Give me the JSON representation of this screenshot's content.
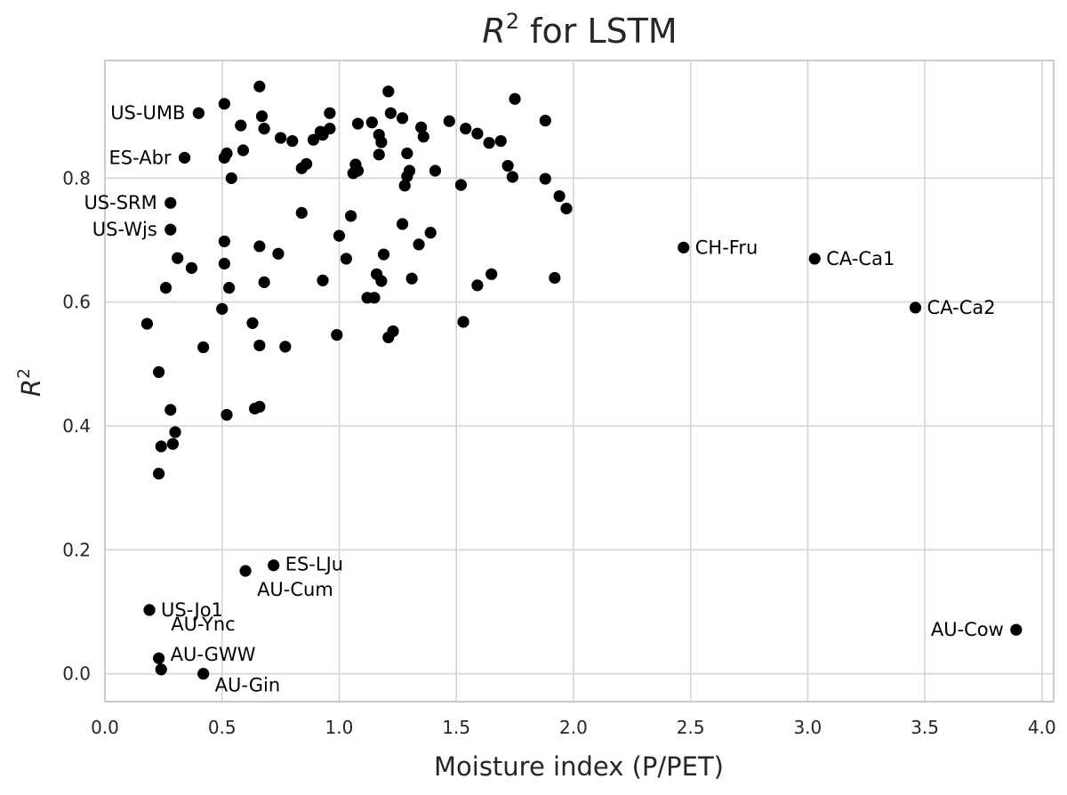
{
  "chart_data": {
    "type": "scatter",
    "title_main": "R",
    "title_sup": "2",
    "title_rest": " for LSTM",
    "xlabel": "Moisture index (P/PET)",
    "ylabel_main": "R",
    "ylabel_sup": "2",
    "xlim": [
      0.0,
      4.05
    ],
    "ylim": [
      -0.045,
      0.99
    ],
    "xticks": [
      "0.0",
      "0.5",
      "1.0",
      "1.5",
      "2.0",
      "2.5",
      "3.0",
      "3.5",
      "4.0"
    ],
    "yticks": [
      "0.0",
      "0.2",
      "0.4",
      "0.6",
      "0.8"
    ],
    "grid": true,
    "color": "#000000",
    "points": [
      {
        "x": 0.4,
        "y": 0.905
      },
      {
        "x": 0.51,
        "y": 0.92
      },
      {
        "x": 0.66,
        "y": 0.948
      },
      {
        "x": 0.67,
        "y": 0.9
      },
      {
        "x": 0.58,
        "y": 0.885
      },
      {
        "x": 0.68,
        "y": 0.88
      },
      {
        "x": 0.75,
        "y": 0.865
      },
      {
        "x": 0.8,
        "y": 0.86
      },
      {
        "x": 0.89,
        "y": 0.862
      },
      {
        "x": 0.92,
        "y": 0.875
      },
      {
        "x": 0.93,
        "y": 0.87
      },
      {
        "x": 0.96,
        "y": 0.905
      },
      {
        "x": 0.96,
        "y": 0.88
      },
      {
        "x": 1.08,
        "y": 0.888
      },
      {
        "x": 1.14,
        "y": 0.89
      },
      {
        "x": 1.17,
        "y": 0.87
      },
      {
        "x": 1.18,
        "y": 0.858
      },
      {
        "x": 1.21,
        "y": 0.94
      },
      {
        "x": 1.22,
        "y": 0.905
      },
      {
        "x": 1.27,
        "y": 0.897
      },
      {
        "x": 1.35,
        "y": 0.882
      },
      {
        "x": 1.36,
        "y": 0.867
      },
      {
        "x": 1.47,
        "y": 0.892
      },
      {
        "x": 1.54,
        "y": 0.88
      },
      {
        "x": 1.59,
        "y": 0.872
      },
      {
        "x": 1.64,
        "y": 0.857
      },
      {
        "x": 1.69,
        "y": 0.86
      },
      {
        "x": 1.75,
        "y": 0.928
      },
      {
        "x": 1.88,
        "y": 0.893
      },
      {
        "x": 0.34,
        "y": 0.833
      },
      {
        "x": 0.51,
        "y": 0.833
      },
      {
        "x": 0.52,
        "y": 0.84
      },
      {
        "x": 0.59,
        "y": 0.845
      },
      {
        "x": 0.54,
        "y": 0.8
      },
      {
        "x": 0.84,
        "y": 0.816
      },
      {
        "x": 0.86,
        "y": 0.823
      },
      {
        "x": 1.06,
        "y": 0.808
      },
      {
        "x": 1.07,
        "y": 0.822
      },
      {
        "x": 1.08,
        "y": 0.812
      },
      {
        "x": 1.17,
        "y": 0.838
      },
      {
        "x": 1.29,
        "y": 0.84
      },
      {
        "x": 1.29,
        "y": 0.803
      },
      {
        "x": 1.3,
        "y": 0.812
      },
      {
        "x": 1.28,
        "y": 0.788
      },
      {
        "x": 1.41,
        "y": 0.812
      },
      {
        "x": 1.52,
        "y": 0.789
      },
      {
        "x": 1.72,
        "y": 0.82
      },
      {
        "x": 1.74,
        "y": 0.802
      },
      {
        "x": 1.88,
        "y": 0.799
      },
      {
        "x": 1.94,
        "y": 0.771
      },
      {
        "x": 1.97,
        "y": 0.751
      },
      {
        "x": 0.28,
        "y": 0.76
      },
      {
        "x": 0.28,
        "y": 0.717
      },
      {
        "x": 0.84,
        "y": 0.744
      },
      {
        "x": 1.05,
        "y": 0.739
      },
      {
        "x": 1.27,
        "y": 0.726
      },
      {
        "x": 1.39,
        "y": 0.712
      },
      {
        "x": 1.0,
        "y": 0.707
      },
      {
        "x": 0.51,
        "y": 0.698
      },
      {
        "x": 0.66,
        "y": 0.69
      },
      {
        "x": 1.34,
        "y": 0.693
      },
      {
        "x": 0.31,
        "y": 0.671
      },
      {
        "x": 0.74,
        "y": 0.678
      },
      {
        "x": 1.19,
        "y": 0.677
      },
      {
        "x": 0.51,
        "y": 0.662
      },
      {
        "x": 1.03,
        "y": 0.67
      },
      {
        "x": 0.37,
        "y": 0.655
      },
      {
        "x": 1.16,
        "y": 0.645
      },
      {
        "x": 1.18,
        "y": 0.634
      },
      {
        "x": 0.93,
        "y": 0.635
      },
      {
        "x": 1.31,
        "y": 0.638
      },
      {
        "x": 0.68,
        "y": 0.632
      },
      {
        "x": 0.26,
        "y": 0.623
      },
      {
        "x": 0.53,
        "y": 0.623
      },
      {
        "x": 1.59,
        "y": 0.627
      },
      {
        "x": 1.65,
        "y": 0.645
      },
      {
        "x": 1.92,
        "y": 0.639
      },
      {
        "x": 1.12,
        "y": 0.607
      },
      {
        "x": 1.15,
        "y": 0.607
      },
      {
        "x": 0.5,
        "y": 0.589
      },
      {
        "x": 0.18,
        "y": 0.565
      },
      {
        "x": 0.63,
        "y": 0.566
      },
      {
        "x": 1.53,
        "y": 0.568
      },
      {
        "x": 0.99,
        "y": 0.547
      },
      {
        "x": 1.21,
        "y": 0.543
      },
      {
        "x": 1.23,
        "y": 0.553
      },
      {
        "x": 0.42,
        "y": 0.527
      },
      {
        "x": 0.66,
        "y": 0.53
      },
      {
        "x": 0.77,
        "y": 0.528
      },
      {
        "x": 0.23,
        "y": 0.487
      },
      {
        "x": 0.28,
        "y": 0.426
      },
      {
        "x": 0.52,
        "y": 0.418
      },
      {
        "x": 0.64,
        "y": 0.428
      },
      {
        "x": 0.66,
        "y": 0.431
      },
      {
        "x": 0.3,
        "y": 0.39
      },
      {
        "x": 0.24,
        "y": 0.367
      },
      {
        "x": 0.29,
        "y": 0.371
      },
      {
        "x": 0.23,
        "y": 0.323
      },
      {
        "x": 0.6,
        "y": 0.166
      },
      {
        "x": 0.72,
        "y": 0.175
      },
      {
        "x": 0.19,
        "y": 0.103
      },
      {
        "x": 0.23,
        "y": 0.025
      },
      {
        "x": 0.24,
        "y": 0.007
      },
      {
        "x": 0.42,
        "y": 0.0
      },
      {
        "x": 2.47,
        "y": 0.688
      },
      {
        "x": 3.03,
        "y": 0.67
      },
      {
        "x": 3.46,
        "y": 0.591
      },
      {
        "x": 3.89,
        "y": 0.071
      }
    ],
    "annotations": [
      {
        "text": "US-UMB",
        "x": 0.4,
        "y": 0.905
      },
      {
        "text": "ES-Abr",
        "x": 0.34,
        "y": 0.833
      },
      {
        "text": "US-SRM",
        "x": 0.28,
        "y": 0.76
      },
      {
        "text": "US-Wjs",
        "x": 0.28,
        "y": 0.717
      },
      {
        "text": "CH-Fru",
        "x": 2.47,
        "y": 0.688
      },
      {
        "text": "CA-Ca1",
        "x": 3.03,
        "y": 0.67
      },
      {
        "text": "CA-Ca2",
        "x": 3.46,
        "y": 0.591
      },
      {
        "text": "ES-LJu",
        "x": 0.72,
        "y": 0.175
      },
      {
        "text": "AU-Cum",
        "x": 0.6,
        "y": 0.166
      },
      {
        "text": "US-Jo1",
        "x": 0.19,
        "y": 0.103
      },
      {
        "text": "AU-Ync",
        "x": 0.24,
        "y": 0.007
      },
      {
        "text": "AU-GWW",
        "x": 0.23,
        "y": 0.025
      },
      {
        "text": "AU-Gin",
        "x": 0.42,
        "y": 0.0
      },
      {
        "text": "AU-Cow",
        "x": 3.89,
        "y": 0.071
      }
    ]
  }
}
